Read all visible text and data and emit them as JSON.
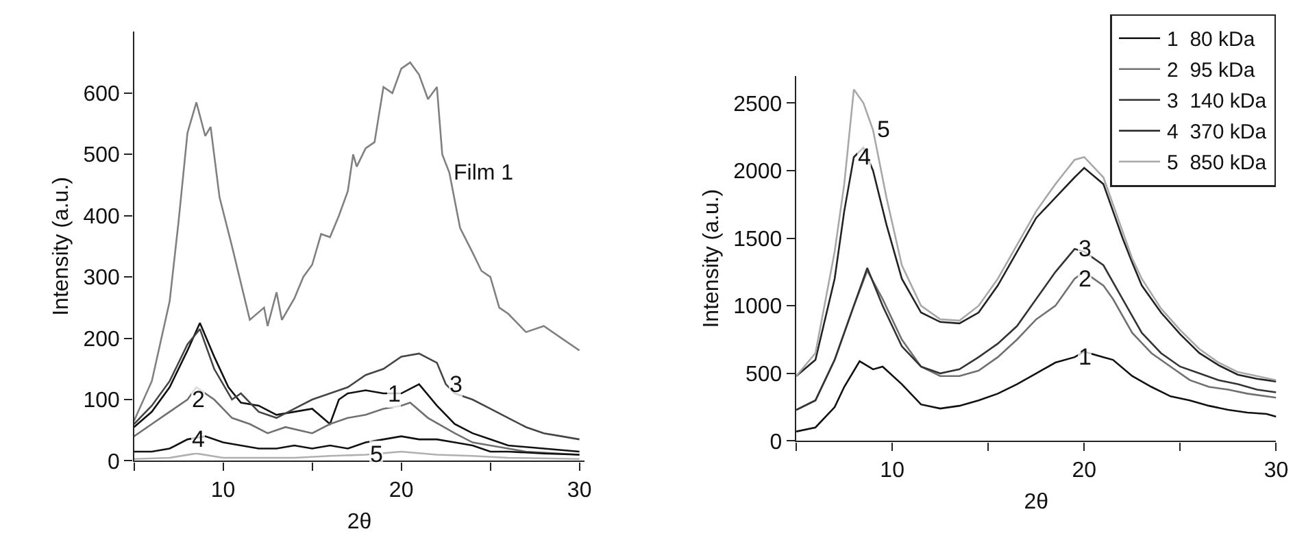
{
  "chart_data": [
    {
      "type": "line",
      "xlabel": "2θ",
      "ylabel": "Intensity (a.u.)",
      "xlim": [
        5,
        30.3
      ],
      "ylim": [
        0,
        700
      ],
      "xticks": [
        {
          "value": 5,
          "label": null
        },
        10,
        {
          "value": 15,
          "label": null
        },
        20,
        {
          "value": 25,
          "label": null
        },
        30
      ],
      "yticks": [
        0,
        100,
        200,
        300,
        400,
        500,
        600
      ],
      "legend": false,
      "marker": "none",
      "line_style": "solid",
      "series": [
        {
          "color": "#808080",
          "x": [
            5,
            6,
            7,
            7.5,
            8,
            8.5,
            9,
            9.3,
            9.8,
            10.5,
            11,
            11.5,
            12.3,
            12.5,
            13,
            13.3,
            14,
            14.5,
            15,
            15.5,
            16,
            16.5,
            17,
            17.3,
            17.5,
            18,
            18.5,
            19,
            19.5,
            20,
            20.5,
            21,
            21.5,
            22,
            22.3,
            22.7,
            23.3,
            24,
            24.5,
            25,
            25.5,
            26,
            26.5,
            27,
            28,
            29,
            30
          ],
          "values": [
            65,
            130,
            260,
            390,
            535,
            585,
            530,
            545,
            430,
            350,
            290,
            230,
            250,
            220,
            275,
            230,
            265,
            300,
            320,
            370,
            365,
            400,
            440,
            500,
            480,
            510,
            520,
            610,
            600,
            640,
            650,
            630,
            590,
            610,
            500,
            470,
            380,
            340,
            310,
            300,
            250,
            240,
            225,
            210,
            220,
            200,
            180
          ]
        },
        {
          "color": "#111111",
          "x": [
            5,
            6,
            7,
            8,
            8.7,
            9.5,
            10.3,
            11,
            12,
            13,
            14,
            15,
            16,
            16.5,
            17,
            18,
            19,
            20,
            21,
            22,
            23,
            24,
            25,
            26,
            28,
            30
          ],
          "values": [
            55,
            80,
            120,
            180,
            225,
            170,
            120,
            95,
            90,
            75,
            80,
            85,
            60,
            100,
            110,
            115,
            110,
            110,
            125,
            90,
            60,
            45,
            35,
            25,
            20,
            15
          ]
        },
        {
          "color": "#707070",
          "x": [
            5,
            6,
            7,
            8,
            8.5,
            9.5,
            10.5,
            11.5,
            12.5,
            13.5,
            15,
            16,
            17,
            18,
            19,
            20,
            20.5,
            21.5,
            23,
            24,
            25,
            27,
            30
          ],
          "values": [
            40,
            60,
            80,
            100,
            120,
            100,
            70,
            60,
            45,
            55,
            45,
            60,
            70,
            75,
            85,
            90,
            95,
            70,
            45,
            30,
            25,
            15,
            10
          ]
        },
        {
          "color": "#454545",
          "x": [
            5,
            6,
            7,
            8,
            8.7,
            9.5,
            10.5,
            11,
            12,
            13,
            14,
            15,
            16,
            17,
            18,
            19,
            20,
            21,
            22,
            22.5,
            23,
            24,
            25,
            26,
            27,
            28,
            29,
            30
          ],
          "values": [
            60,
            90,
            130,
            190,
            215,
            150,
            100,
            110,
            80,
            70,
            85,
            100,
            110,
            120,
            140,
            150,
            170,
            175,
            160,
            125,
            110,
            100,
            85,
            70,
            55,
            45,
            40,
            35
          ]
        },
        {
          "color": "#111111",
          "x": [
            5,
            6,
            7,
            8,
            9,
            10,
            11,
            12,
            13,
            14,
            15,
            16,
            17,
            18,
            19,
            20,
            21,
            22,
            23,
            24,
            25,
            26,
            28,
            30
          ],
          "values": [
            15,
            15,
            20,
            35,
            40,
            30,
            25,
            20,
            20,
            25,
            20,
            25,
            20,
            30,
            35,
            40,
            35,
            35,
            30,
            25,
            15,
            15,
            12,
            10
          ]
        },
        {
          "color": "#b0b0b0",
          "x": [
            5,
            7,
            8.5,
            10,
            12,
            14,
            16,
            18,
            20,
            22,
            24,
            26,
            30
          ],
          "values": [
            3,
            5,
            12,
            5,
            5,
            5,
            8,
            10,
            15,
            10,
            8,
            5,
            3
          ]
        }
      ],
      "annotations": [
        {
          "text": "Film 1",
          "x": 22.7,
          "y": 470
        },
        {
          "text": "2",
          "x": 8,
          "y": 100
        },
        {
          "text": "4",
          "x": 8,
          "y": 35
        },
        {
          "text": "1",
          "x": 19,
          "y": 110
        },
        {
          "text": "3",
          "x": 22.5,
          "y": 125
        },
        {
          "text": "5",
          "x": 18,
          "y": 10
        }
      ]
    },
    {
      "type": "line",
      "xlabel": "2θ",
      "ylabel": "Intensity (a.u.)",
      "xlim": [
        5,
        30
      ],
      "ylim": [
        0,
        2700
      ],
      "xticks": [
        {
          "value": 5,
          "label": null
        },
        10,
        {
          "value": 15,
          "label": null
        },
        20,
        {
          "value": 25,
          "label": null
        },
        30
      ],
      "yticks": [
        0,
        500,
        1000,
        1500,
        2000,
        2500
      ],
      "legend": "top right",
      "marker": "none",
      "line_style": "solid",
      "series": [
        {
          "name": "1  80 kDa",
          "color": "#111111",
          "x": [
            5,
            6,
            7,
            7.5,
            8.3,
            9,
            9.5,
            10.5,
            11.5,
            12.5,
            13.5,
            14.5,
            15.5,
            16.5,
            17.5,
            18.5,
            19.5,
            20,
            21,
            21.5,
            22.5,
            23.5,
            24.5,
            25.5,
            26.5,
            27.5,
            28.5,
            29.5,
            30
          ],
          "values": [
            70,
            100,
            250,
            400,
            590,
            530,
            550,
            420,
            270,
            240,
            260,
            300,
            350,
            420,
            500,
            580,
            620,
            660,
            620,
            600,
            480,
            400,
            330,
            300,
            260,
            230,
            210,
            200,
            180
          ]
        },
        {
          "name": "2  95 kDa",
          "color": "#707070",
          "x": [
            5,
            6,
            7,
            8,
            8.7,
            9.5,
            10.5,
            11.5,
            12.5,
            13.5,
            14.5,
            15.5,
            16.5,
            17.5,
            18.5,
            19.5,
            20,
            21,
            21.5,
            22.5,
            23.5,
            24.5,
            25.5,
            26.5,
            27.5,
            28.5,
            30
          ],
          "values": [
            230,
            300,
            600,
            1000,
            1260,
            1050,
            750,
            550,
            480,
            480,
            520,
            620,
            750,
            900,
            1000,
            1200,
            1250,
            1150,
            1050,
            800,
            650,
            550,
            450,
            400,
            380,
            350,
            320
          ]
        },
        {
          "name": "3  140 kDa",
          "color": "#333333",
          "x": [
            5,
            6,
            7,
            8,
            8.7,
            9.5,
            10.5,
            11.5,
            12.5,
            13.5,
            14.5,
            15.5,
            16.5,
            17.5,
            18.5,
            19.5,
            20,
            21,
            22,
            23,
            24,
            25,
            26,
            27,
            28,
            29,
            30
          ],
          "values": [
            230,
            300,
            600,
            1000,
            1280,
            1000,
            700,
            550,
            500,
            530,
            620,
            720,
            850,
            1050,
            1250,
            1420,
            1400,
            1300,
            1050,
            800,
            650,
            550,
            500,
            450,
            420,
            380,
            360
          ]
        },
        {
          "name": "4  370 kDa",
          "color": "#222222",
          "x": [
            5,
            6,
            7,
            7.5,
            8,
            8.5,
            9,
            9.7,
            10.5,
            11.5,
            12.5,
            13.5,
            14.5,
            15.5,
            16.5,
            17.5,
            18.5,
            19.5,
            20,
            21,
            21.5,
            22,
            22.5,
            23,
            24,
            25,
            26,
            27,
            28,
            29,
            30
          ],
          "values": [
            480,
            600,
            1200,
            1700,
            2100,
            2170,
            2000,
            1600,
            1200,
            950,
            880,
            870,
            950,
            1150,
            1400,
            1650,
            1800,
            1950,
            2020,
            1900,
            1700,
            1500,
            1320,
            1150,
            950,
            790,
            650,
            560,
            490,
            460,
            440
          ]
        },
        {
          "name": "5  850 kDa",
          "color": "#a8a8a8",
          "x": [
            5,
            6,
            7,
            7.5,
            8,
            8.5,
            9,
            9.7,
            10.5,
            11.5,
            12.5,
            13.5,
            14.5,
            15.5,
            16.5,
            17.5,
            18.5,
            19.5,
            20,
            21,
            21.5,
            22,
            22.5,
            23,
            24,
            25,
            26,
            27,
            28,
            29,
            30
          ],
          "values": [
            480,
            650,
            1400,
            1900,
            2600,
            2500,
            2300,
            1800,
            1300,
            1000,
            900,
            890,
            1000,
            1200,
            1450,
            1700,
            1900,
            2080,
            2100,
            1950,
            1750,
            1550,
            1350,
            1200,
            980,
            820,
            680,
            580,
            510,
            480,
            450
          ]
        }
      ],
      "annotations": [
        {
          "text": "5",
          "x": 9,
          "y": 2300
        },
        {
          "text": "4",
          "x": 8,
          "y": 2100
        },
        {
          "text": "3",
          "x": 19.5,
          "y": 1420
        },
        {
          "text": "2",
          "x": 19.5,
          "y": 1200
        },
        {
          "text": "1",
          "x": 19.5,
          "y": 620
        }
      ]
    }
  ]
}
